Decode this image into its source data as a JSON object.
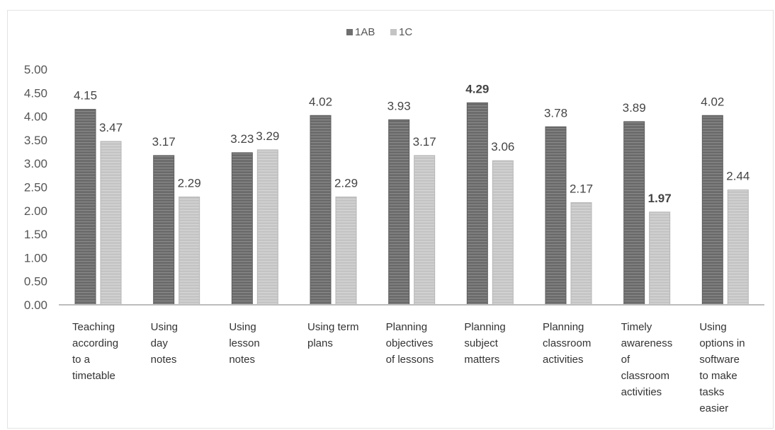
{
  "chart_data": {
    "type": "bar",
    "categories": [
      [
        "Teaching",
        "according",
        "to a",
        "timetable"
      ],
      [
        "Using",
        "day",
        "notes"
      ],
      [
        "Using",
        "lesson",
        "notes"
      ],
      [
        "Using term",
        "plans"
      ],
      [
        "Planning",
        "objectives",
        "of lessons"
      ],
      [
        "Planning",
        "subject",
        "matters"
      ],
      [
        "Planning",
        "classroom",
        "activities"
      ],
      [
        "Timely",
        "awareness",
        "of",
        "classroom",
        "activities"
      ],
      [
        "Using",
        "options in",
        "software",
        "to make",
        "tasks",
        "easier"
      ]
    ],
    "series": [
      {
        "name": "1AB",
        "values": [
          4.15,
          3.17,
          3.23,
          4.02,
          3.93,
          4.29,
          3.78,
          3.89,
          4.02
        ],
        "labels": [
          "4.15",
          "3.17",
          "3.23",
          "4.02",
          "3.93",
          "4.29",
          "3.78",
          "3.89",
          "4.02"
        ]
      },
      {
        "name": "1C",
        "values": [
          3.47,
          2.29,
          3.29,
          2.29,
          3.17,
          3.06,
          2.17,
          1.97,
          2.44
        ],
        "labels": [
          "3.47",
          "2.29",
          "3.29",
          "2.29",
          "3.17",
          "3.06",
          "2.17",
          "1.97",
          "2.44"
        ]
      }
    ],
    "bold_labels": {
      "1AB": [
        5
      ],
      "1C": [
        7
      ]
    },
    "ylim": [
      0,
      5
    ],
    "yticks": [
      "0.00",
      "0.50",
      "1.00",
      "1.50",
      "2.00",
      "2.50",
      "3.00",
      "3.50",
      "4.00",
      "4.50",
      "5.00"
    ],
    "grid": false,
    "legend_position": "top-center",
    "colors": {
      "1AB": "#707070",
      "1C": "#c6c6c6"
    }
  }
}
